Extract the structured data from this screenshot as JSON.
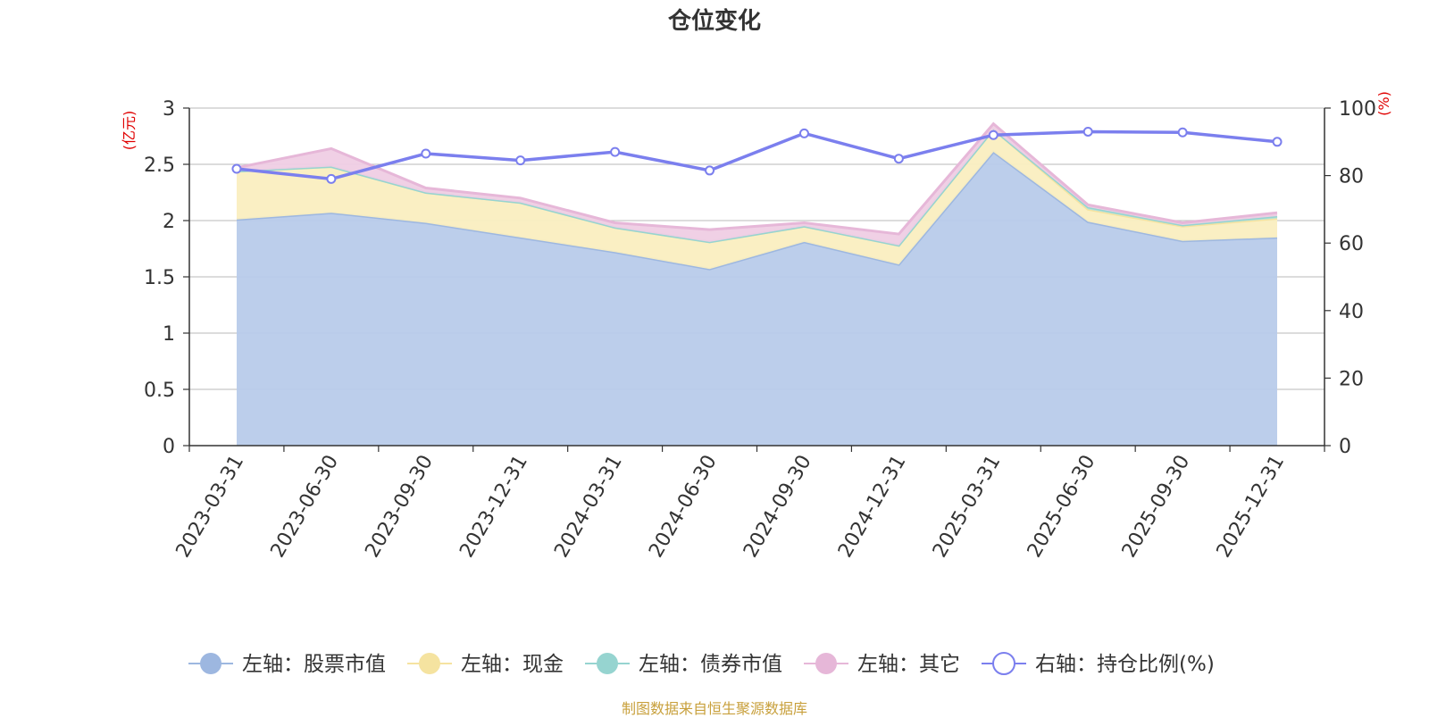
{
  "chart_data": {
    "type": "area",
    "title": "仓位变化",
    "left_axis_unit": "(亿元)",
    "right_axis_unit": "(%)",
    "categories": [
      "2023-03-31",
      "2023-06-30",
      "2023-09-30",
      "2023-12-31",
      "2024-03-31",
      "2024-06-30",
      "2024-09-30",
      "2024-12-31",
      "2025-03-31",
      "2025-06-30",
      "2025-09-30",
      "2025-12-31"
    ],
    "left_ylim": [
      0,
      3
    ],
    "left_yticks": [
      "0",
      "0.5",
      "1",
      "1.5",
      "2",
      "2.5",
      "3"
    ],
    "right_ylim": [
      0,
      100
    ],
    "right_yticks": [
      "0",
      "20",
      "40",
      "60",
      "80",
      "100"
    ],
    "series": [
      {
        "name": "左轴：股票市值",
        "axis": "left",
        "stacked": true,
        "color": "#9db7e0",
        "fill": "#b8cbea",
        "values": [
          2.01,
          2.07,
          1.98,
          1.85,
          1.72,
          1.57,
          1.81,
          1.61,
          2.61,
          1.99,
          1.82,
          1.85
        ]
      },
      {
        "name": "左轴：现金",
        "axis": "left",
        "stacked": true,
        "color": "#f5e3a0",
        "fill": "#faeec0",
        "values": [
          0.43,
          0.41,
          0.27,
          0.31,
          0.22,
          0.24,
          0.14,
          0.17,
          0.2,
          0.11,
          0.13,
          0.17
        ]
      },
      {
        "name": "左轴：债券市值",
        "axis": "left",
        "stacked": true,
        "color": "#96d4d0",
        "fill": "#b3e0dd",
        "values": [
          0,
          0,
          0,
          0,
          0,
          0,
          0,
          0,
          0,
          0.02,
          0.01,
          0.02
        ]
      },
      {
        "name": "左轴：其它",
        "axis": "left",
        "stacked": true,
        "color": "#e6b7d8",
        "fill": "#efcde4",
        "values": [
          0.03,
          0.16,
          0.04,
          0.04,
          0.04,
          0.11,
          0.03,
          0.1,
          0.05,
          0.02,
          0.02,
          0.03
        ]
      },
      {
        "name": "右轴：持仓比例(%)",
        "axis": "right",
        "type": "line",
        "color": "#7b7fee",
        "values": [
          82,
          79,
          86.5,
          84.5,
          87,
          81.5,
          92.5,
          85,
          92,
          93,
          92.8,
          90
        ]
      }
    ],
    "legend_position": "bottom",
    "grid": true
  },
  "source_text": "制图数据来自恒生聚源数据库"
}
